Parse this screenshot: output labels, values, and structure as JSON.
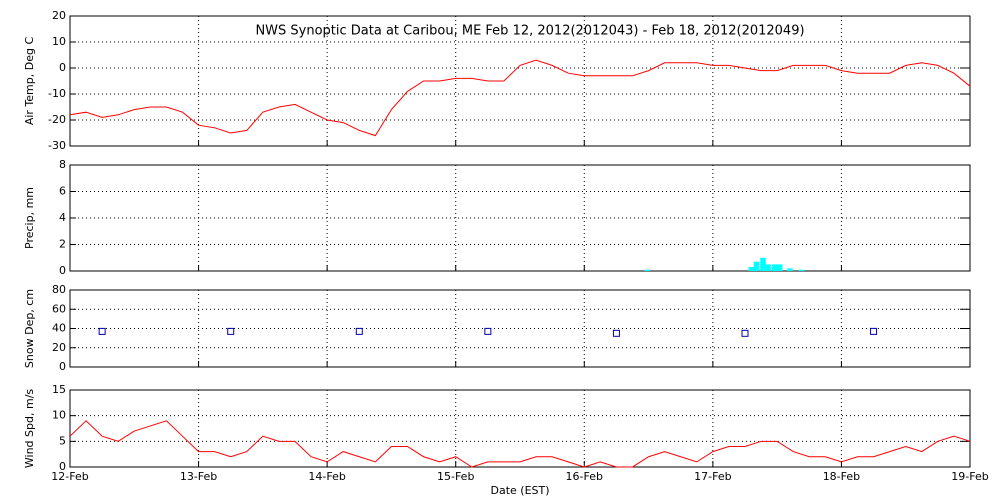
{
  "chart_data": [
    {
      "type": "line",
      "title": "NWS Synoptic Data at Caribou, ME   Feb 12, 2012(2012043) - Feb 18, 2012(2012049)",
      "y_label": "Air Temp, Deg C",
      "grid": true,
      "x": [
        0,
        0.125,
        0.25,
        0.375,
        0.5,
        0.625,
        0.75,
        0.875,
        1,
        1.125,
        1.25,
        1.375,
        1.5,
        1.625,
        1.75,
        1.875,
        2,
        2.125,
        2.25,
        2.375,
        2.5,
        2.625,
        2.75,
        2.875,
        3,
        3.125,
        3.25,
        3.375,
        3.5,
        3.625,
        3.75,
        3.875,
        4,
        4.125,
        4.25,
        4.375,
        4.5,
        4.625,
        4.75,
        4.875,
        5,
        5.125,
        5.25,
        5.375,
        5.5,
        5.625,
        5.75,
        5.875,
        6,
        6.125,
        6.25,
        6.375,
        6.5,
        6.625,
        6.75,
        6.875,
        7
      ],
      "series": [
        {
          "color": "#ff0000",
          "values": [
            -18,
            -17,
            -19,
            -18,
            -16,
            -15,
            -15,
            -17,
            -22,
            -23,
            -25,
            -24,
            -17,
            -15,
            -14,
            -17,
            -20,
            -21,
            -24,
            -26,
            -16,
            -9,
            -5,
            -5,
            -4,
            -4,
            -5,
            -5,
            1,
            3,
            1,
            -2,
            -3,
            -3,
            -3,
            -3,
            -1,
            2,
            2,
            2,
            1,
            1,
            0,
            -1,
            -1,
            1,
            1,
            1,
            -1,
            -2,
            -2,
            -2,
            1,
            2,
            1,
            -2,
            -7
          ]
        }
      ],
      "xlim": [
        0,
        7
      ],
      "xticks": [
        0,
        1,
        2,
        3,
        4,
        5,
        6,
        7
      ],
      "ylim": [
        -30,
        20
      ],
      "yticks": [
        -30,
        -20,
        -10,
        0,
        10,
        20
      ]
    },
    {
      "type": "bar",
      "y_label": "Precip, mm",
      "grid": true,
      "x": [
        4.49,
        5.3,
        5.34,
        5.39,
        5.43,
        5.48,
        5.52,
        5.6,
        5.69
      ],
      "series": [
        {
          "color": "#00ffff",
          "values": [
            0.1,
            0.3,
            0.7,
            1.0,
            0.5,
            0.5,
            0.5,
            0.2,
            0.1
          ]
        }
      ],
      "xlim": [
        0,
        7
      ],
      "xticks": [
        0,
        1,
        2,
        3,
        4,
        5,
        6,
        7
      ],
      "ylim": [
        0,
        8
      ],
      "yticks": [
        0,
        2,
        4,
        6,
        8
      ]
    },
    {
      "type": "scatter",
      "y_label": "Snow Dep, cm",
      "grid": true,
      "x": [
        0.25,
        1.25,
        2.25,
        3.25,
        4.25,
        5.25,
        6.25
      ],
      "series": [
        {
          "color": "#0000aa",
          "values": [
            37,
            37,
            37,
            37,
            35,
            35,
            37
          ]
        }
      ],
      "xlim": [
        0,
        7
      ],
      "xticks": [
        0,
        1,
        2,
        3,
        4,
        5,
        6,
        7
      ],
      "ylim": [
        0,
        80
      ],
      "yticks": [
        0,
        20,
        40,
        60,
        80
      ]
    },
    {
      "type": "line",
      "y_label": "Wind Spd, m/s",
      "x_label": "Date (EST)",
      "grid": true,
      "x": [
        0,
        0.125,
        0.25,
        0.375,
        0.5,
        0.625,
        0.75,
        0.875,
        1,
        1.125,
        1.25,
        1.375,
        1.5,
        1.625,
        1.75,
        1.875,
        2,
        2.125,
        2.25,
        2.375,
        2.5,
        2.625,
        2.75,
        2.875,
        3,
        3.125,
        3.25,
        3.375,
        3.5,
        3.625,
        3.75,
        3.875,
        4,
        4.125,
        4.25,
        4.375,
        4.5,
        4.625,
        4.75,
        4.875,
        5,
        5.125,
        5.25,
        5.375,
        5.5,
        5.625,
        5.75,
        5.875,
        6,
        6.125,
        6.25,
        6.375,
        6.5,
        6.625,
        6.75,
        6.875,
        7
      ],
      "series": [
        {
          "color": "#ff0000",
          "values": [
            6,
            9,
            6,
            5,
            7,
            8,
            9,
            6,
            3,
            3,
            2,
            3,
            6,
            5,
            5,
            2,
            1,
            3,
            2,
            1,
            4,
            4,
            2,
            1,
            2,
            0,
            1,
            1,
            1,
            2,
            2,
            1,
            0,
            1,
            0,
            0,
            2,
            3,
            2,
            1,
            3,
            4,
            4,
            5,
            5,
            3,
            2,
            2,
            1,
            2,
            2,
            3,
            4,
            3,
            5,
            6,
            5
          ]
        }
      ],
      "xlim": [
        0,
        7
      ],
      "xticks": [
        {
          "value": 0,
          "label": "12-Feb"
        },
        {
          "value": 1,
          "label": "13-Feb"
        },
        {
          "value": 2,
          "label": "14-Feb"
        },
        {
          "value": 3,
          "label": "15-Feb"
        },
        {
          "value": 4,
          "label": "16-Feb"
        },
        {
          "value": 5,
          "label": "17-Feb"
        },
        {
          "value": 6,
          "label": "18-Feb"
        },
        {
          "value": 7,
          "label": "19-Feb"
        }
      ],
      "ylim": [
        0,
        15
      ],
      "yticks": [
        0,
        5,
        10,
        15
      ]
    }
  ]
}
